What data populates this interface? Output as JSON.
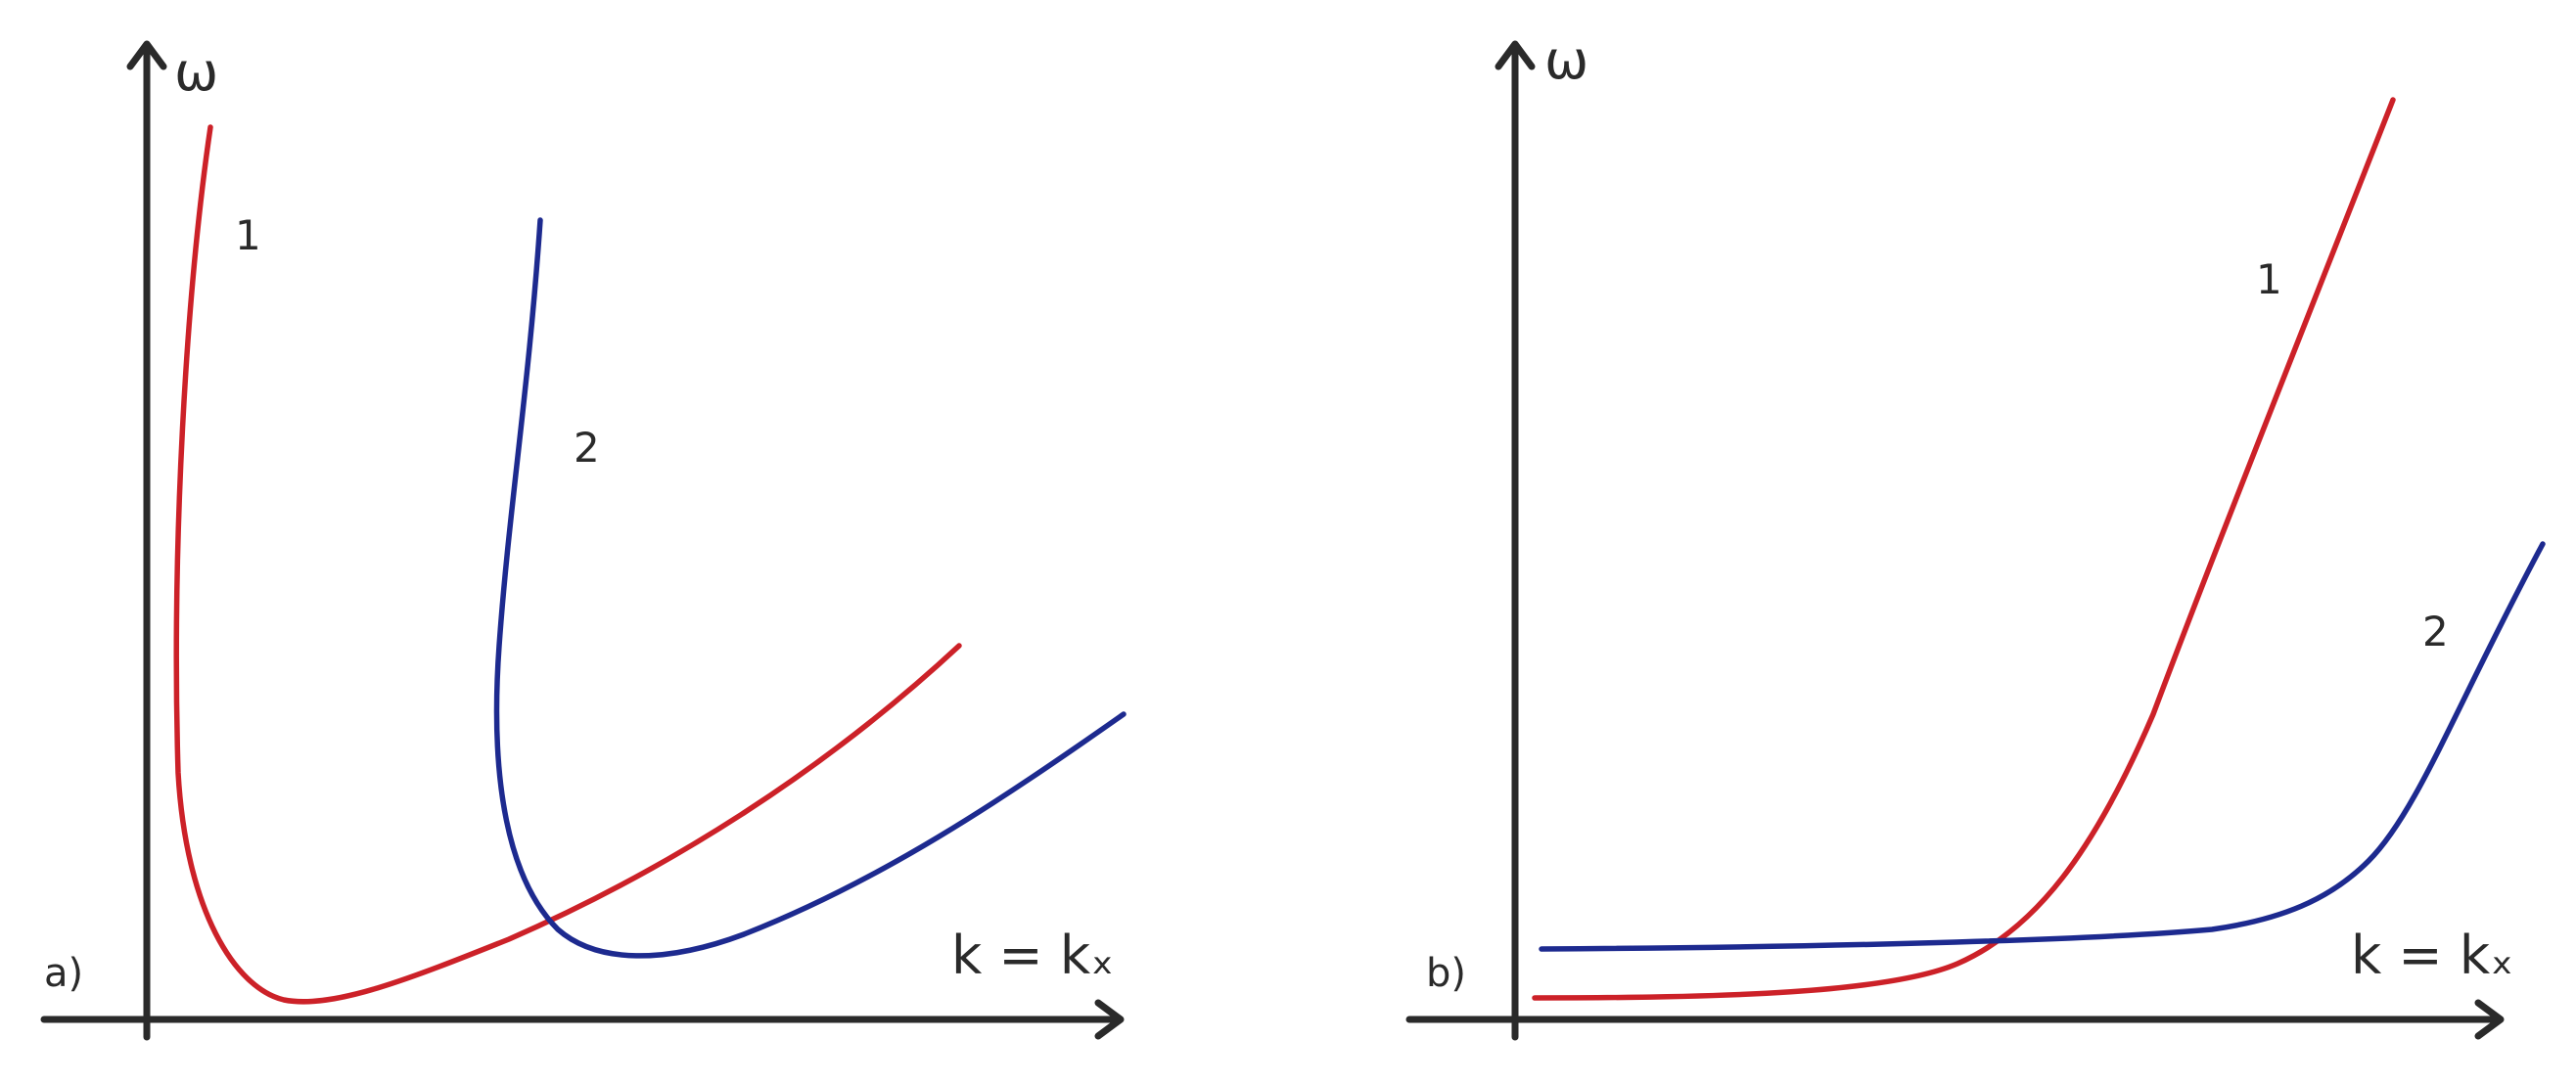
{
  "colors": {
    "axis": "#2a2a2a",
    "curve_1": "#cc2128",
    "curve_2": "#1d2a8f"
  },
  "panels": [
    {
      "label": "a)",
      "y_axis_label": "ω",
      "x_axis_label": "k = kₓ",
      "curves": [
        {
          "label": "1",
          "color": "#cc2128"
        },
        {
          "label": "2",
          "color": "#1d2a8f"
        }
      ]
    },
    {
      "label": "b)",
      "y_axis_label": "ω",
      "x_axis_label": "k = kₓ",
      "curves": [
        {
          "label": "1",
          "color": "#cc2128"
        },
        {
          "label": "2",
          "color": "#1d2a8f"
        }
      ]
    }
  ]
}
